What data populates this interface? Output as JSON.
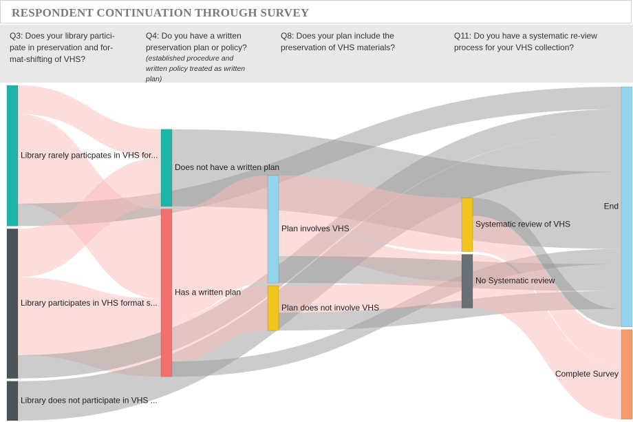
{
  "chart_data": {
    "type": "sankey",
    "title": "RESPONDENT CONTINUATION THROUGH SURVEY",
    "column_headers": [
      {
        "text": "Q3:  Does your library partici-pate in preservation and for-mat-shifting of VHS?"
      },
      {
        "text": "Q4:  Do you have a written preservation plan or policy?",
        "note": "(established procedure and written policy treated as written plan)"
      },
      {
        "text": "Q8:  Does your plan include the preservation of VHS materials?"
      },
      {
        "text": "Q11:  Do you have a systematic re-view process for your VHS collection?"
      }
    ],
    "nodes": [
      {
        "name": "Library rarely particpates in VHS for...",
        "column": 0,
        "color": "#1fb5a6"
      },
      {
        "name": "Library participates in VHS format s...",
        "column": 0,
        "color": "#4b5356"
      },
      {
        "name": "Library does not participate in VHS ...",
        "column": 0,
        "color": "#4b5356"
      },
      {
        "name": "Does not have a written plan",
        "column": 1,
        "color": "#1fb5a6"
      },
      {
        "name": "Has a written plan",
        "column": 1,
        "color": "#f2716f"
      },
      {
        "name": "Plan involves VHS",
        "column": 2,
        "color": "#93d4ec"
      },
      {
        "name": "Plan does not involve VHS",
        "column": 2,
        "color": "#f1c31d"
      },
      {
        "name": "Systematic review of VHS",
        "column": 3,
        "color": "#f1c31d"
      },
      {
        "name": "No Systematic review",
        "column": 3,
        "color": "#6a7073"
      },
      {
        "name": "End",
        "column": 4,
        "color": "#93d4ec"
      },
      {
        "name": "Complete Survey",
        "column": 4,
        "color": "#f79a6b"
      }
    ],
    "links": [
      {
        "source": "Library rarely particpates in VHS for...",
        "target": "Does not have a written plan",
        "value": 32,
        "color": "#fbb9b9"
      },
      {
        "source": "Library rarely particpates in VHS for...",
        "target": "Has a written plan",
        "value": 100,
        "color": "#fbb9b9"
      },
      {
        "source": "Library rarely particpates in VHS for...",
        "target": "End",
        "value": 25,
        "color": "#9a9a9a"
      },
      {
        "source": "Library participates in VHS format s...",
        "target": "Does not have a written plan",
        "value": 54,
        "color": "#fbb9b9"
      },
      {
        "source": "Library participates in VHS format s...",
        "target": "Has a written plan",
        "value": 87,
        "color": "#fbb9b9"
      },
      {
        "source": "Library participates in VHS format s...",
        "target": "End",
        "value": 26,
        "color": "#9a9a9a"
      },
      {
        "source": "Library does not participate in VHS ...",
        "target": "End",
        "value": 44,
        "color": "#9a9a9a"
      },
      {
        "source": "Does not have a written plan",
        "target": "End",
        "value": 86,
        "color": "#9a9a9a"
      },
      {
        "source": "Has a written plan",
        "target": "Plan involves VHS",
        "value": 120,
        "color": "#fbb9b9"
      },
      {
        "source": "Has a written plan",
        "target": "Plan does not involve VHS",
        "value": 50,
        "color": "#fbb9b9"
      },
      {
        "source": "Has a written plan",
        "target": "End",
        "value": 17,
        "color": "#9a9a9a"
      },
      {
        "source": "Plan involves VHS",
        "target": "Systematic review of VHS",
        "value": 60,
        "color": "#fbb9b9"
      },
      {
        "source": "Plan involves VHS",
        "target": "No Systematic review",
        "value": 30,
        "color": "#fbb9b9"
      },
      {
        "source": "Plan involves VHS",
        "target": "End",
        "value": 30,
        "color": "#9a9a9a"
      },
      {
        "source": "Plan does not involve VHS",
        "target": "No Systematic review",
        "value": 30,
        "color": "#fbb9b9"
      },
      {
        "source": "Plan does not involve VHS",
        "target": "End",
        "value": 20,
        "color": "#9a9a9a"
      },
      {
        "source": "Systematic review of VHS",
        "target": "End",
        "value": 20,
        "color": "#9a9a9a"
      },
      {
        "source": "Systematic review of VHS",
        "target": "Complete Survey",
        "value": 40,
        "color": "#fbb9b9"
      },
      {
        "source": "No Systematic review",
        "target": "Complete Survey",
        "value": 60,
        "color": "#fbb9b9"
      }
    ]
  }
}
